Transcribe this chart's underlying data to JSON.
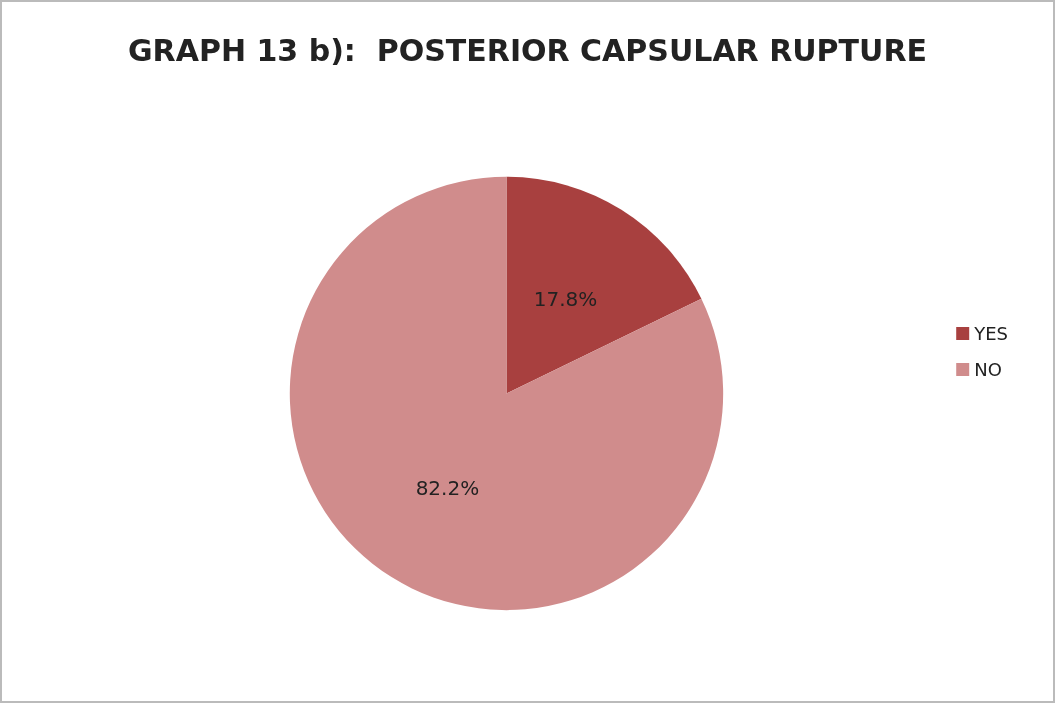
{
  "chart_data": {
    "type": "pie",
    "title": "GRAPH 13 b):  POSTERIOR CAPSULAR RUPTURE",
    "categories": [
      "YES",
      "NO"
    ],
    "values": [
      17.8,
      82.2
    ],
    "value_labels": [
      "17.8%",
      "82.2%"
    ],
    "colors": [
      "#a8403f",
      "#d08c8c"
    ],
    "legend": "right"
  }
}
